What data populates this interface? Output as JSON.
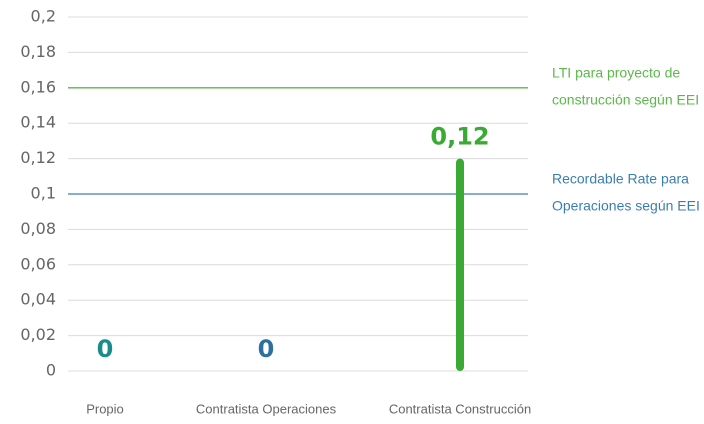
{
  "chart_data": {
    "type": "bar",
    "categories": [
      "Propio",
      "Contratista Operaciones",
      "Contratista Construcción"
    ],
    "values": [
      0,
      0,
      0.12
    ],
    "value_labels": [
      "0",
      "0",
      "0,12"
    ],
    "colors": [
      "#1a8c8c",
      "#2e6f9e",
      "#3aaa35"
    ],
    "ylim": [
      0,
      0.2
    ],
    "yticks": [
      0,
      {
        "value": 0.02,
        "label": "0,02"
      },
      {
        "value": 0.04,
        "label": "0,04"
      },
      {
        "value": 0.06,
        "label": "0,06"
      },
      {
        "value": 0.08,
        "label": "0,08"
      },
      {
        "value": 0.1,
        "label": "0,1"
      },
      {
        "value": 0.12,
        "label": "0,12"
      },
      {
        "value": 0.14,
        "label": "0,14"
      },
      {
        "value": 0.16,
        "label": "0,16"
      },
      {
        "value": 0.18,
        "label": "0,18"
      },
      {
        "value": 0.2,
        "label": "0,2"
      }
    ],
    "grid": true,
    "reference_lines": [
      {
        "value": 0.16,
        "label": [
          "LTI para proyecto de",
          "construcción según EEI"
        ],
        "color": "#5cb84a"
      },
      {
        "value": 0.1,
        "label": [
          "Recordable Rate para",
          "Operaciones según EEI"
        ],
        "color": "#3a7fb0"
      }
    ]
  }
}
